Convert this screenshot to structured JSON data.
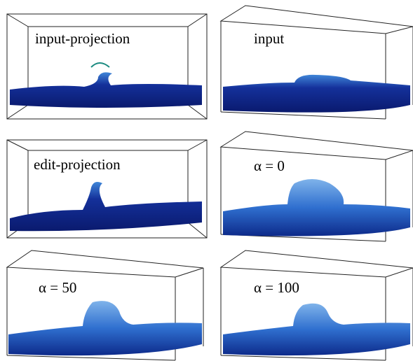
{
  "panels": [
    {
      "label": "input-projection"
    },
    {
      "label": "input"
    },
    {
      "label": "edit-projection"
    },
    {
      "label": "α = 0"
    },
    {
      "label": "α = 50"
    },
    {
      "label": "α = 100"
    }
  ]
}
